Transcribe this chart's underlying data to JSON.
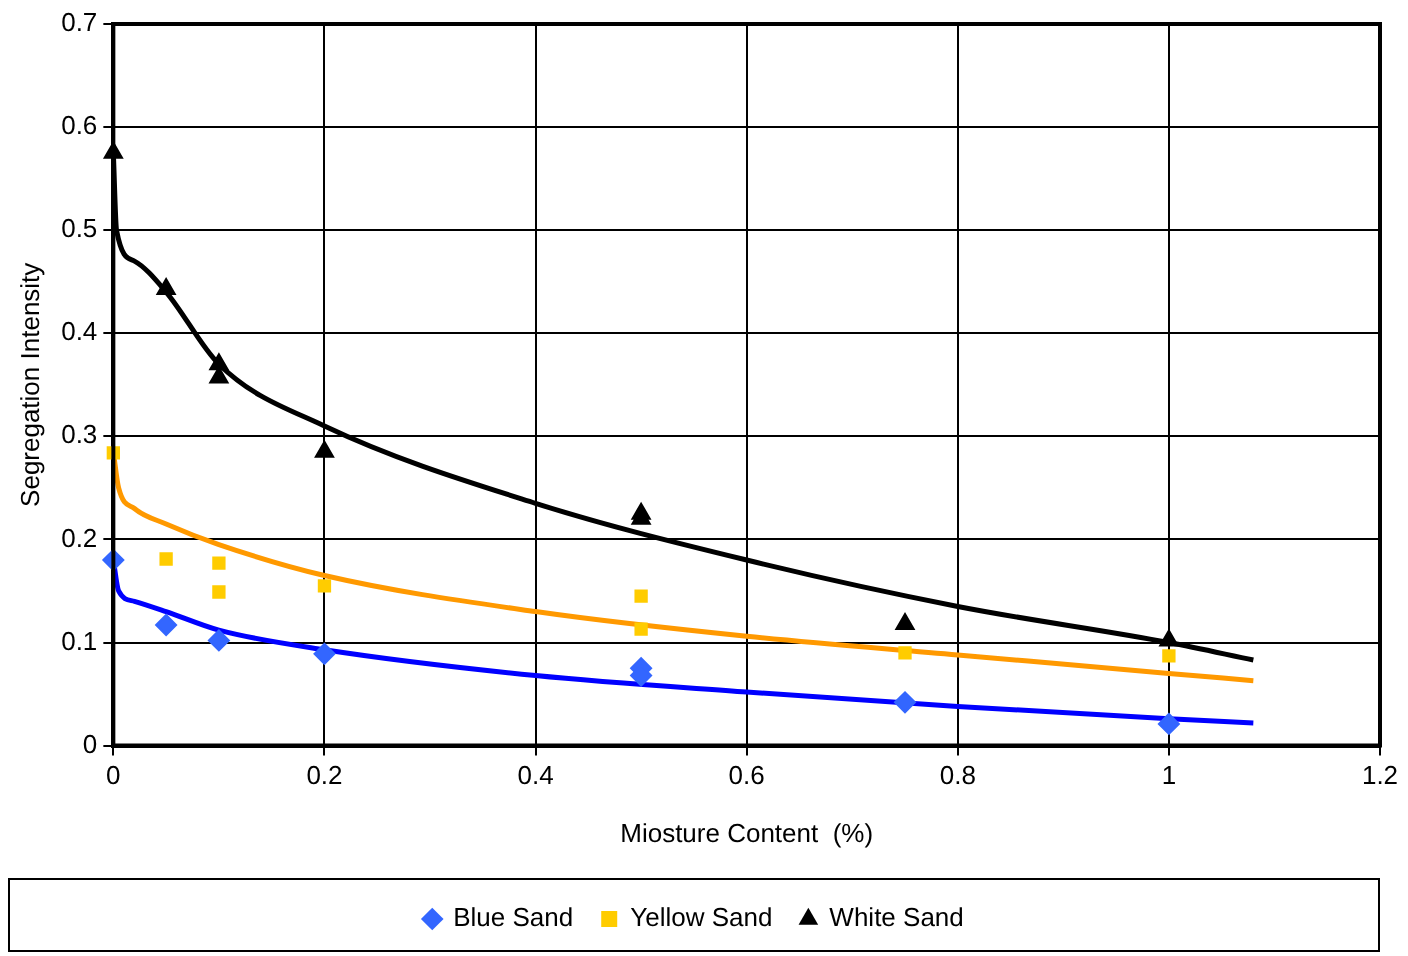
{
  "chart_data": {
    "type": "scatter",
    "xlabel": "Miosture Content  (%)",
    "ylabel": "Segregation Intensity",
    "xlim": [
      0,
      1.2
    ],
    "xticks": [
      0,
      0.2,
      0.4,
      0.6,
      0.8,
      1,
      1.2
    ],
    "ylim": [
      0,
      0.7
    ],
    "yticks": [
      0,
      0.1,
      0.2,
      0.3,
      0.4,
      0.5,
      0.6,
      0.7
    ],
    "grid": true,
    "legend": "bottom",
    "series": [
      {
        "name": "Blue Sand",
        "color": "#3366ff",
        "marker": "diamond",
        "x": [
          0,
          0.05,
          0.1,
          0.2,
          0.5,
          0.5,
          0.75,
          1
        ],
        "values": [
          0.18,
          0.117,
          0.102,
          0.089,
          0.075,
          0.068,
          0.042,
          0.021
        ]
      },
      {
        "name": "Yellow Sand",
        "color": "#ffcc00",
        "marker": "square",
        "x": [
          0,
          0.05,
          0.1,
          0.1,
          0.2,
          0.5,
          0.5,
          0.75,
          1
        ],
        "values": [
          0.284,
          0.181,
          0.177,
          0.149,
          0.155,
          0.145,
          0.113,
          0.09,
          0.087
        ]
      },
      {
        "name": "White Sand",
        "color": "#000000",
        "marker": "triangle",
        "x": [
          0,
          0.05,
          0.1,
          0.1,
          0.2,
          0.5,
          0.5,
          0.75,
          1
        ],
        "values": [
          0.575,
          0.443,
          0.37,
          0.357,
          0.285,
          0.225,
          0.22,
          0.118,
          0.102
        ]
      },
      {
        "type": "line",
        "color": "#0000ff",
        "marker": "none",
        "x": [
          0,
          0.005,
          0.02,
          0.05,
          0.1,
          0.2,
          0.4,
          0.6,
          0.8,
          1,
          1.08
        ],
        "values": [
          0.18,
          0.15,
          0.14,
          0.13,
          0.112,
          0.093,
          0.068,
          0.052,
          0.038,
          0.026,
          0.022
        ]
      },
      {
        "type": "line",
        "color": "#ff9900",
        "marker": "none",
        "x": [
          0,
          0.005,
          0.02,
          0.05,
          0.1,
          0.2,
          0.4,
          0.6,
          0.8,
          1,
          1.08
        ],
        "values": [
          0.285,
          0.25,
          0.23,
          0.215,
          0.195,
          0.165,
          0.13,
          0.106,
          0.088,
          0.07,
          0.063
        ]
      },
      {
        "type": "line",
        "color": "#000000",
        "marker": "none",
        "x": [
          0,
          0.003,
          0.02,
          0.05,
          0.1,
          0.2,
          0.4,
          0.6,
          0.8,
          1,
          1.08
        ],
        "values": [
          0.575,
          0.5,
          0.47,
          0.44,
          0.37,
          0.31,
          0.235,
          0.18,
          0.135,
          0.1,
          0.083
        ]
      }
    ]
  }
}
